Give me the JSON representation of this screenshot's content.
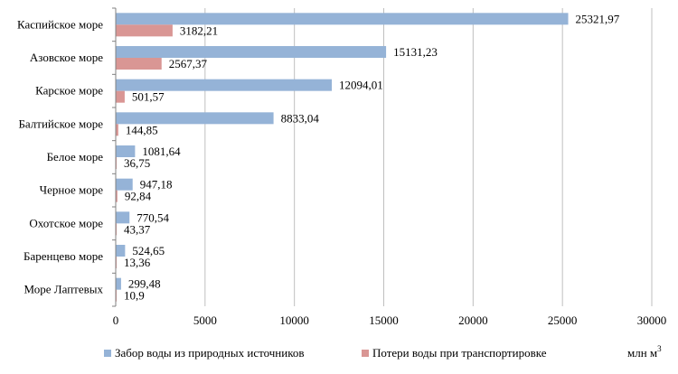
{
  "chart_data": {
    "type": "bar",
    "orientation": "horizontal",
    "categories": [
      "Каспийское  море",
      "Азовское море",
      "Карское  море",
      "Балтийское  море",
      "Белое море",
      "Черное  море",
      "Охотское море",
      "Баренцево  море",
      "Море Лаптевых"
    ],
    "series": [
      {
        "name": "Забор воды из природных  источников",
        "color": "#95b3d7",
        "values": [
          25321.97,
          15131.23,
          12094.01,
          8833.04,
          1081.64,
          947.18,
          770.54,
          524.65,
          299.48
        ],
        "labels": [
          "25321,97",
          "15131,23",
          "12094,01",
          "8833,04",
          "1081,64",
          "947,18",
          "770,54",
          "524,65",
          "299,48"
        ]
      },
      {
        "name": "Потери воды при транспортировке",
        "color": "#d99694",
        "values": [
          3182.21,
          2567.37,
          501.57,
          144.85,
          36.75,
          92.84,
          43.37,
          13.36,
          10.9
        ],
        "labels": [
          "3182,21",
          "2567,37",
          "501,57",
          "144,85",
          "36,75",
          "92,84",
          "43,37",
          "13,36",
          "10,9"
        ]
      }
    ],
    "xlim": [
      0,
      30000
    ],
    "xticks": [
      0,
      5000,
      10000,
      15000,
      20000,
      25000,
      30000
    ],
    "xtick_labels": [
      "0",
      "5000",
      "10000",
      "15000",
      "20000",
      "25000",
      "30000"
    ],
    "grid": "vertical",
    "legend_position": "bottom",
    "unit_label": "млн м",
    "unit_superscript": "3"
  }
}
